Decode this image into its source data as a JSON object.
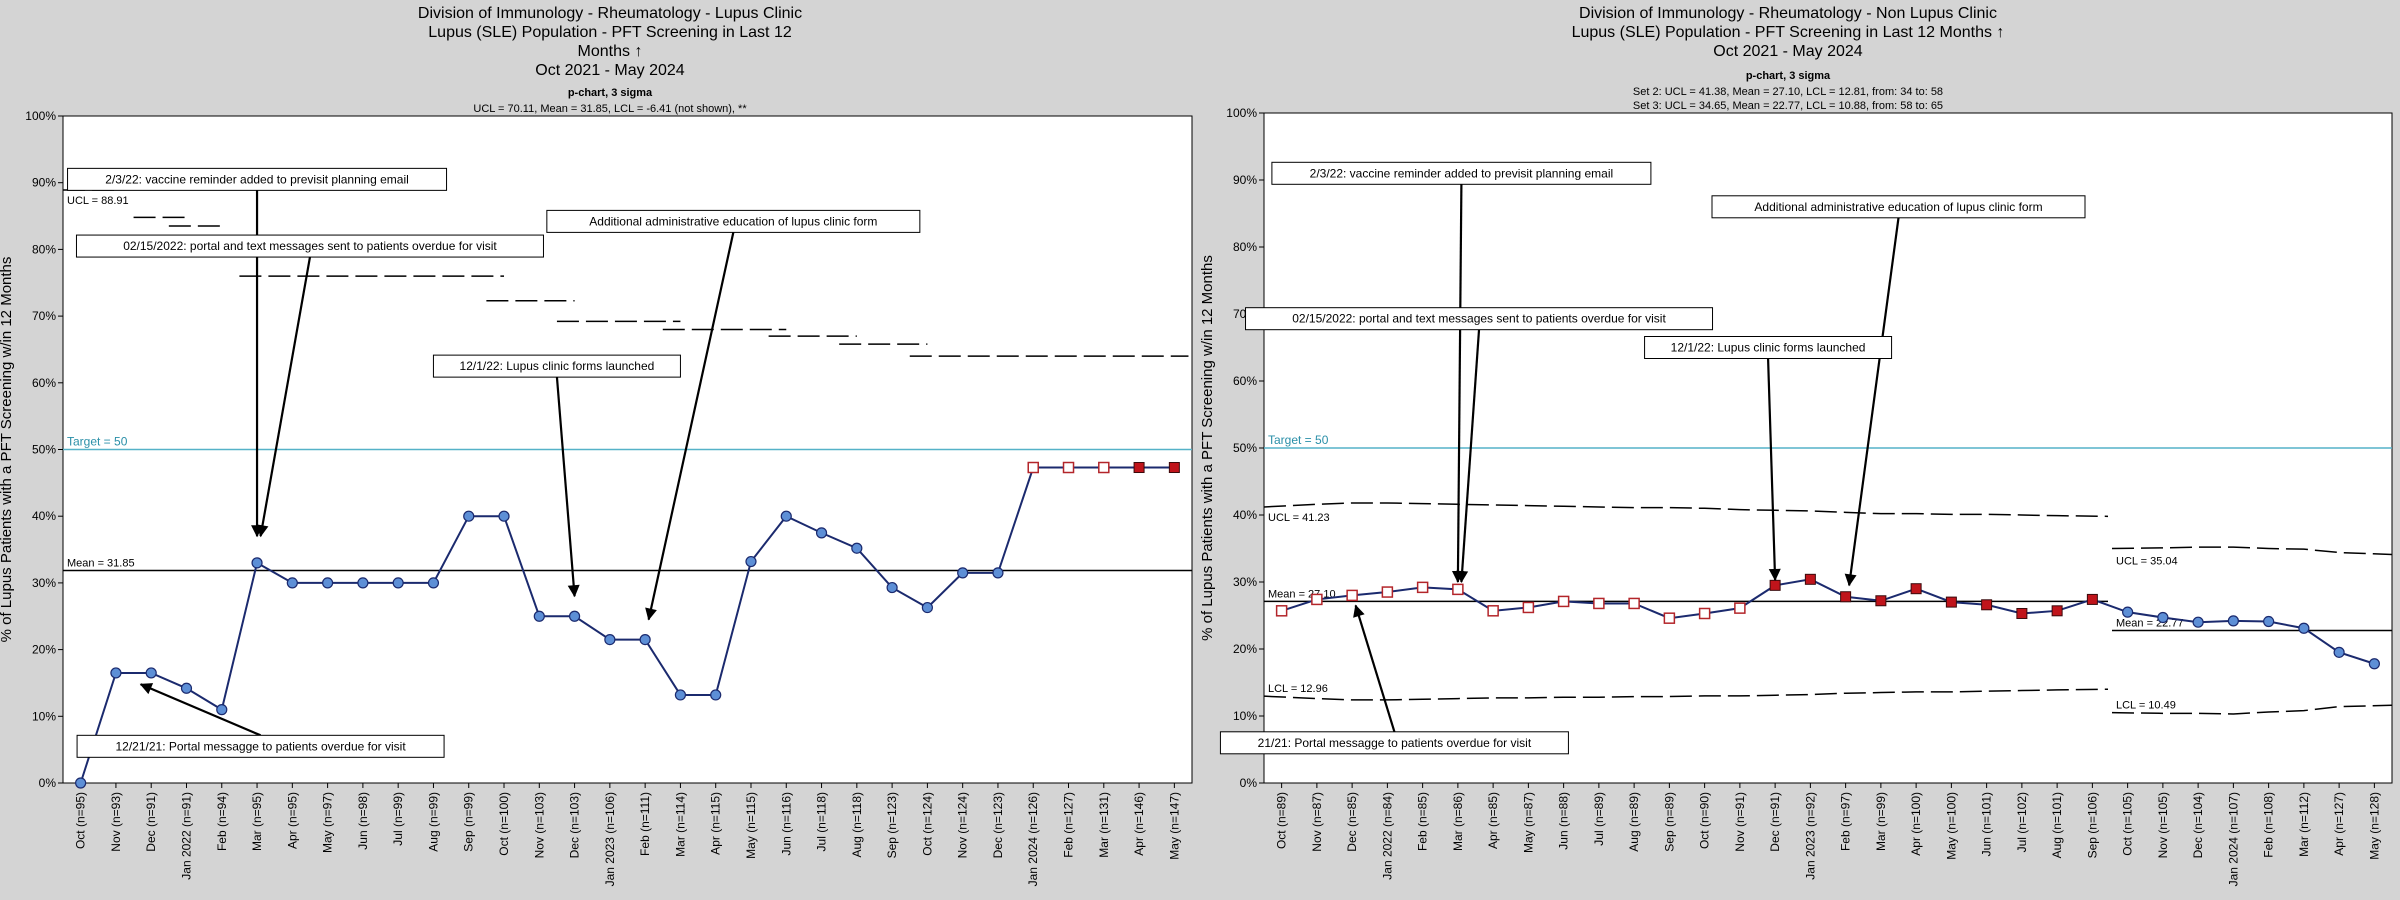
{
  "chart_data": [
    {
      "type": "line",
      "title": [
        "Division of Immunology - Rheumatology - Lupus Clinic",
        "Lupus (SLE) Population - PFT Screening in Last 12",
        "Months ↑",
        "Oct 2021 - May 2024"
      ],
      "subtitle": [
        "p-chart, 3 sigma",
        "UCL = 70.11, Mean = 31.85, LCL = -6.41 (not shown), **"
      ],
      "ylabel": "% of Lupus Patients with a PFT Screening w/in 12 Months",
      "ylim": [
        0,
        100
      ],
      "yticks": [
        "0%",
        "10%",
        "20%",
        "30%",
        "40%",
        "50%",
        "60%",
        "70%",
        "80%",
        "90%",
        "100%"
      ],
      "target": {
        "value": 50,
        "label": "Target = 50"
      },
      "mean": {
        "value": 31.85,
        "label": "Mean = 31.85"
      },
      "ucl_label": "UCL = 88.91",
      "categories": [
        "Oct (n=95)",
        "Nov (n=93)",
        "Dec (n=91)",
        "Jan 2022 (n=91)",
        "Feb (n=94)",
        "Mar (n=95)",
        "Apr (n=95)",
        "May (n=97)",
        "Jun (n=98)",
        "Jul (n=99)",
        "Aug (n=99)",
        "Sep (n=99)",
        "Oct (n=100)",
        "Nov (n=103)",
        "Dec (n=103)",
        "Jan 2023 (n=106)",
        "Feb (n=111)",
        "Mar (n=114)",
        "Apr (n=115)",
        "May (n=115)",
        "Jun (n=116)",
        "Jul (n=118)",
        "Aug (n=118)",
        "Sep (n=123)",
        "Oct (n=124)",
        "Nov (n=124)",
        "Dec (n=123)",
        "Jan 2024 (n=126)",
        "Feb (n=127)",
        "Mar (n=131)",
        "Apr (n=146)",
        "May (n=147)"
      ],
      "values": [
        0,
        16.5,
        16.5,
        14.2,
        11,
        33,
        30,
        30,
        30,
        30,
        30,
        40,
        40,
        25,
        25,
        21.5,
        21.5,
        13.2,
        13.2,
        33.2,
        40,
        37.5,
        35.2,
        29.3,
        26.3,
        31.5,
        31.5,
        47.3,
        47.3,
        47.3,
        47.3,
        47.3
      ],
      "markers": [
        "circle",
        "circle",
        "circle",
        "circle",
        "circle",
        "circle",
        "circle",
        "circle",
        "circle",
        "circle",
        "circle",
        "circle",
        "circle",
        "circle",
        "circle",
        "circle",
        "circle",
        "circle",
        "circle",
        "circle",
        "circle",
        "circle",
        "circle",
        "circle",
        "circle",
        "circle",
        "circle",
        "open-square",
        "open-square",
        "open-square",
        "filled-square",
        "filled-square"
      ],
      "ucl_segments": [
        {
          "from": 0,
          "to": 1,
          "value": 88.9
        },
        {
          "from": 2,
          "to": 3,
          "value": 84.8
        },
        {
          "from": 3,
          "to": 4,
          "value": 83.5
        },
        {
          "from": 5,
          "to": 12,
          "value": 76
        },
        {
          "from": 12,
          "to": 14,
          "value": 72.3
        },
        {
          "from": 14,
          "to": 17,
          "value": 69.2
        },
        {
          "from": 17,
          "to": 20,
          "value": 68
        },
        {
          "from": 20,
          "to": 22,
          "value": 67
        },
        {
          "from": 22,
          "to": 24,
          "value": 65.8
        },
        {
          "from": 24,
          "to": 31.4,
          "value": 64
        }
      ],
      "annotations": [
        {
          "text": "2/3/22: vaccine reminder added to previsit planning email",
          "at": 5,
          "value": 90.5,
          "tip_x": 5,
          "tip_y": 37
        },
        {
          "text": "02/15/2022: portal and text messages sent to patients overdue for visit",
          "at": 6.5,
          "value": 80.5,
          "tip_x": 5.1,
          "tip_y": 37
        },
        {
          "text": "Additional administrative education of lupus clinic form",
          "at": 18.5,
          "value": 84.2,
          "tip_x": 16.1,
          "tip_y": 24.5
        },
        {
          "text": "12/1/22: Lupus clinic forms launched",
          "at": 13.5,
          "value": 62.5,
          "tip_x": 14,
          "tip_y": 28
        },
        {
          "text": "12/21/21: Portal messagge to patients overdue for visit",
          "at": 5.1,
          "value": 5.5,
          "tip_x": 1.7,
          "tip_y": 14.8
        }
      ]
    },
    {
      "type": "line",
      "title": [
        "Division of Immunology - Rheumatology - Non Lupus Clinic",
        "Lupus (SLE) Population - PFT Screening in Last 12 Months ↑",
        "Oct 2021 - May 2024"
      ],
      "subtitle": [
        "p-chart, 3 sigma",
        "Set 2: UCL = 41.38, Mean = 27.10, LCL = 12.81, from: 34 to: 58",
        "Set 3: UCL = 34.65, Mean = 22.77, LCL = 10.88, from: 58 to: 65"
      ],
      "ylabel": "% of Lupus Patients with a PFT Screening w/in 12 Months",
      "ylim": [
        0,
        100
      ],
      "yticks": [
        "0%",
        "10%",
        "20%",
        "30%",
        "40%",
        "50%",
        "60%",
        "70%",
        "80%",
        "90%",
        "100%"
      ],
      "target": {
        "value": 50,
        "label": "Target = 50"
      },
      "set2": {
        "mean": 27.1,
        "mean_label": "Mean = 27.10",
        "ucl_label": "UCL = 41.23",
        "lcl_label": "LCL = 12.96"
      },
      "set3": {
        "mean": 22.77,
        "mean_label": "Mean = 22.77",
        "ucl_label": "UCL = 35.04",
        "lcl_label": "LCL = 10.49"
      },
      "categories": [
        "Oct (n=89)",
        "Nov (n=87)",
        "Dec (n=85)",
        "Jan 2022 (n=84)",
        "Feb (n=85)",
        "Mar (n=86)",
        "Apr (n=85)",
        "May (n=87)",
        "Jun (n=88)",
        "Jul (n=89)",
        "Aug (n=89)",
        "Sep (n=89)",
        "Oct (n=90)",
        "Nov (n=91)",
        "Dec (n=91)",
        "Jan 2023 (n=92)",
        "Feb (n=97)",
        "Mar (n=99)",
        "Apr (n=100)",
        "May (n=100)",
        "Jun (n=101)",
        "Jul (n=102)",
        "Aug (n=101)",
        "Sep (n=106)",
        "Oct (n=105)",
        "Nov (n=105)",
        "Dec (n=104)",
        "Jan 2024 (n=107)",
        "Feb (n=108)",
        "Mar (n=112)",
        "Apr (n=127)",
        "May (n=128)"
      ],
      "values": [
        25.7,
        27.4,
        28,
        28.5,
        29.2,
        28.9,
        25.7,
        26.2,
        27.1,
        26.8,
        26.8,
        24.6,
        25.3,
        26.1,
        29.5,
        30.4,
        27.8,
        27.2,
        29,
        27,
        26.6,
        25.3,
        25.7,
        27.4,
        25.5,
        24.7,
        24,
        24.2,
        24.1,
        23.1,
        19.5,
        17.8
      ],
      "markers": [
        "open-square",
        "open-square",
        "open-square",
        "open-square",
        "open-square",
        "open-square",
        "open-square",
        "open-square",
        "open-square",
        "open-square",
        "open-square",
        "open-square",
        "open-square",
        "open-square",
        "filled-square",
        "filled-square",
        "filled-square",
        "filled-square",
        "filled-square",
        "filled-square",
        "filled-square",
        "filled-square",
        "filled-square",
        "filled-square",
        "circle",
        "circle",
        "circle",
        "circle",
        "circle",
        "circle",
        "circle",
        "circle"
      ],
      "ucl_set2": [
        41.2,
        41.6,
        41.8,
        41.8,
        41.7,
        41.6,
        41.5,
        41.4,
        41.3,
        41.2,
        41.1,
        41.1,
        41,
        40.8,
        40.7,
        40.6,
        40.4,
        40.2,
        40.2,
        40.1,
        40.1,
        40,
        39.9,
        39.8
      ],
      "lcl_set2": [
        12.96,
        12.6,
        12.4,
        12.4,
        12.5,
        12.6,
        12.7,
        12.7,
        12.8,
        12.8,
        12.9,
        12.9,
        13,
        13,
        13.1,
        13.2,
        13.4,
        13.5,
        13.6,
        13.6,
        13.7,
        13.8,
        13.9,
        14
      ],
      "ucl_set3": [
        35,
        35.1,
        35.2,
        35.2,
        35,
        34.9,
        34.4,
        34.1
      ],
      "lcl_set3": [
        10.5,
        10.4,
        10.4,
        10.3,
        10.6,
        10.8,
        11.4,
        11.6
      ],
      "annotations": [
        {
          "text": "2/3/22: vaccine reminder added to previsit planning email",
          "at": 5.1,
          "value": 91,
          "tip_x": 5,
          "tip_y": 30
        },
        {
          "text": "Additional administrative education of lupus clinic form",
          "at": 17.5,
          "value": 86,
          "tip_x": 16.1,
          "tip_y": 29.5
        },
        {
          "text": "02/15/2022: portal and text messages sent to patients overdue for visit",
          "at": 5.6,
          "value": 69.3,
          "tip_x": 5.1,
          "tip_y": 30
        },
        {
          "text": "12/1/22: Lupus clinic forms launched",
          "at": 13.8,
          "value": 65,
          "tip_x": 14,
          "tip_y": 30.3
        },
        {
          "text": "21/21: Portal messagge to patients overdue for visit",
          "at": 3.2,
          "value": 6,
          "tip_x": 2.1,
          "tip_y": 26.5
        }
      ]
    }
  ]
}
